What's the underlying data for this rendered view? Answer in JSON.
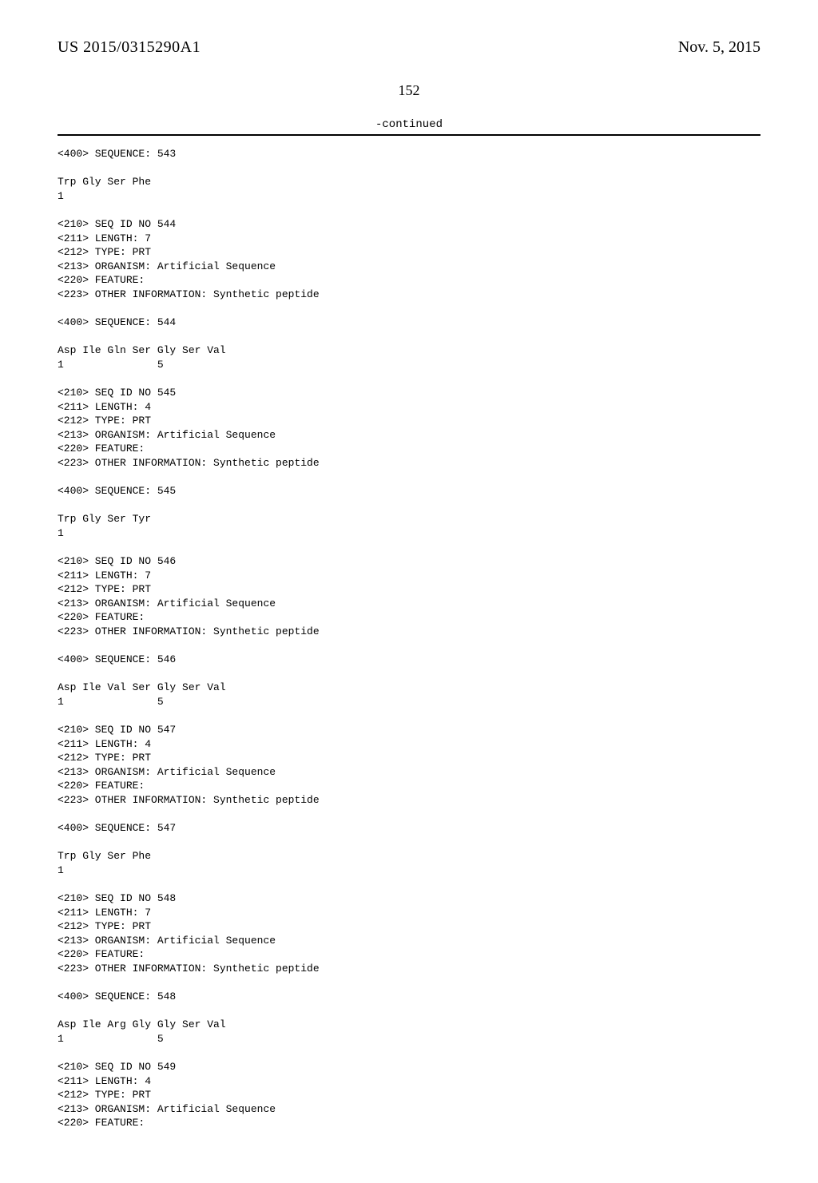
{
  "header": {
    "publication_number": "US 2015/0315290A1",
    "publication_date": "Nov. 5, 2015"
  },
  "page_number": "152",
  "continued_label": "-continued",
  "sequences": [
    {
      "lines": [
        "<400> SEQUENCE: 543",
        "",
        "Trp Gly Ser Phe",
        "1"
      ]
    },
    {
      "lines": [
        "<210> SEQ ID NO 544",
        "<211> LENGTH: 7",
        "<212> TYPE: PRT",
        "<213> ORGANISM: Artificial Sequence",
        "<220> FEATURE:",
        "<223> OTHER INFORMATION: Synthetic peptide",
        "",
        "<400> SEQUENCE: 544",
        "",
        "Asp Ile Gln Ser Gly Ser Val",
        "1               5"
      ]
    },
    {
      "lines": [
        "<210> SEQ ID NO 545",
        "<211> LENGTH: 4",
        "<212> TYPE: PRT",
        "<213> ORGANISM: Artificial Sequence",
        "<220> FEATURE:",
        "<223> OTHER INFORMATION: Synthetic peptide",
        "",
        "<400> SEQUENCE: 545",
        "",
        "Trp Gly Ser Tyr",
        "1"
      ]
    },
    {
      "lines": [
        "<210> SEQ ID NO 546",
        "<211> LENGTH: 7",
        "<212> TYPE: PRT",
        "<213> ORGANISM: Artificial Sequence",
        "<220> FEATURE:",
        "<223> OTHER INFORMATION: Synthetic peptide",
        "",
        "<400> SEQUENCE: 546",
        "",
        "Asp Ile Val Ser Gly Ser Val",
        "1               5"
      ]
    },
    {
      "lines": [
        "<210> SEQ ID NO 547",
        "<211> LENGTH: 4",
        "<212> TYPE: PRT",
        "<213> ORGANISM: Artificial Sequence",
        "<220> FEATURE:",
        "<223> OTHER INFORMATION: Synthetic peptide",
        "",
        "<400> SEQUENCE: 547",
        "",
        "Trp Gly Ser Phe",
        "1"
      ]
    },
    {
      "lines": [
        "<210> SEQ ID NO 548",
        "<211> LENGTH: 7",
        "<212> TYPE: PRT",
        "<213> ORGANISM: Artificial Sequence",
        "<220> FEATURE:",
        "<223> OTHER INFORMATION: Synthetic peptide",
        "",
        "<400> SEQUENCE: 548",
        "",
        "Asp Ile Arg Gly Gly Ser Val",
        "1               5"
      ]
    },
    {
      "lines": [
        "<210> SEQ ID NO 549",
        "<211> LENGTH: 4",
        "<212> TYPE: PRT",
        "<213> ORGANISM: Artificial Sequence",
        "<220> FEATURE:"
      ]
    }
  ]
}
